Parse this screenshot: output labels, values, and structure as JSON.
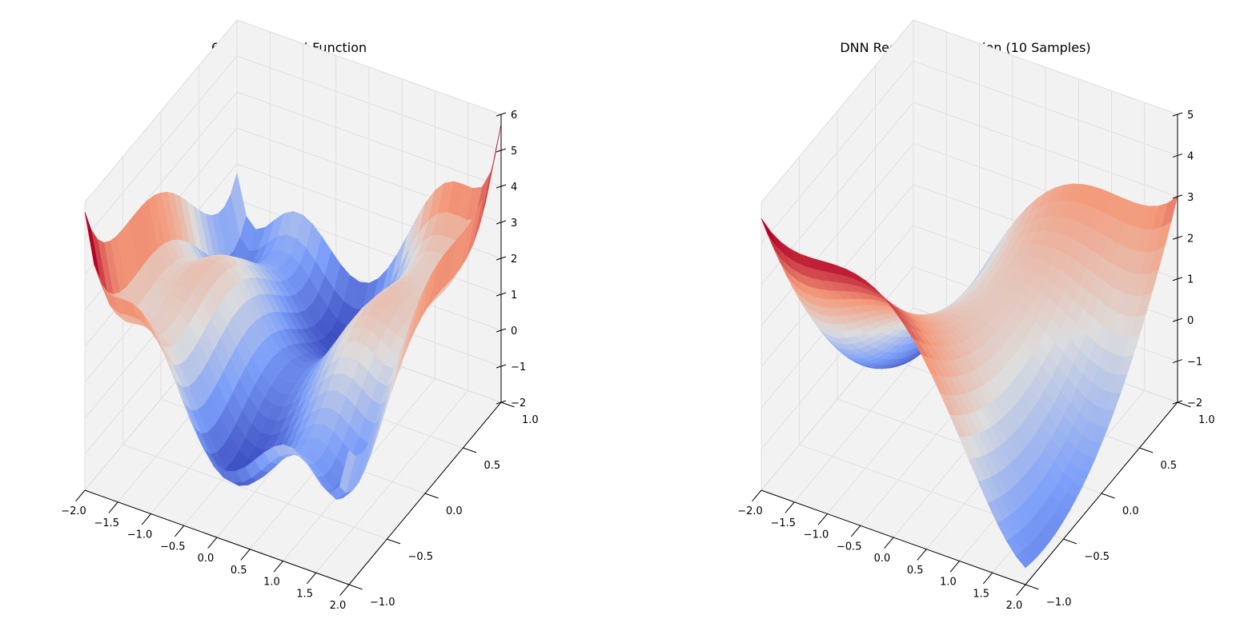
{
  "chart_data": [
    {
      "type": "surface3d",
      "title": "6-Hump-Camel-Function",
      "function": "six_hump_camel",
      "x_range": [
        -2.0,
        2.0
      ],
      "y_range": [
        -1.0,
        1.0
      ],
      "z_range": [
        -2,
        6
      ],
      "grid": true,
      "colormap": "coolwarm",
      "x_ticks": [
        "−2.0",
        "−1.5",
        "−1.0",
        "−0.5",
        "0.0",
        "0.5",
        "1.0",
        "1.5",
        "2.0"
      ],
      "y_ticks": [
        "−1.0",
        "−0.5",
        "0.0",
        "0.5",
        "1.0"
      ],
      "z_ticks": [
        "−2",
        "−1",
        "0",
        "1",
        "2",
        "3",
        "4",
        "5",
        "6"
      ],
      "x_tick_values": [
        -2,
        -1.5,
        -1,
        -0.5,
        0,
        0.5,
        1,
        1.5,
        2
      ],
      "y_tick_values": [
        -1,
        -0.5,
        0,
        0.5,
        1
      ],
      "z_tick_values": [
        -2,
        -1,
        0,
        1,
        2,
        3,
        4,
        5,
        6
      ]
    },
    {
      "type": "surface3d",
      "title": "DNN Regression Function (10 Samples)",
      "function": "dnn_regression",
      "x_range": [
        -2.0,
        2.0
      ],
      "y_range": [
        -1.0,
        1.0
      ],
      "z_range": [
        -2,
        5
      ],
      "grid": true,
      "colormap": "coolwarm",
      "x_ticks": [
        "−2.0",
        "−1.5",
        "−1.0",
        "−0.5",
        "0.0",
        "0.5",
        "1.0",
        "1.5",
        "2.0"
      ],
      "y_ticks": [
        "−1.0",
        "−0.5",
        "0.0",
        "0.5",
        "1.0"
      ],
      "z_ticks": [
        "−2",
        "−1",
        "0",
        "1",
        "2",
        "3",
        "4",
        "5"
      ],
      "x_tick_values": [
        -2,
        -1.5,
        -1,
        -0.5,
        0,
        0.5,
        1,
        1.5,
        2
      ],
      "y_tick_values": [
        -1,
        -0.5,
        0,
        0.5,
        1
      ],
      "z_tick_values": [
        -2,
        -1,
        0,
        1,
        2,
        3,
        4,
        5
      ]
    }
  ]
}
